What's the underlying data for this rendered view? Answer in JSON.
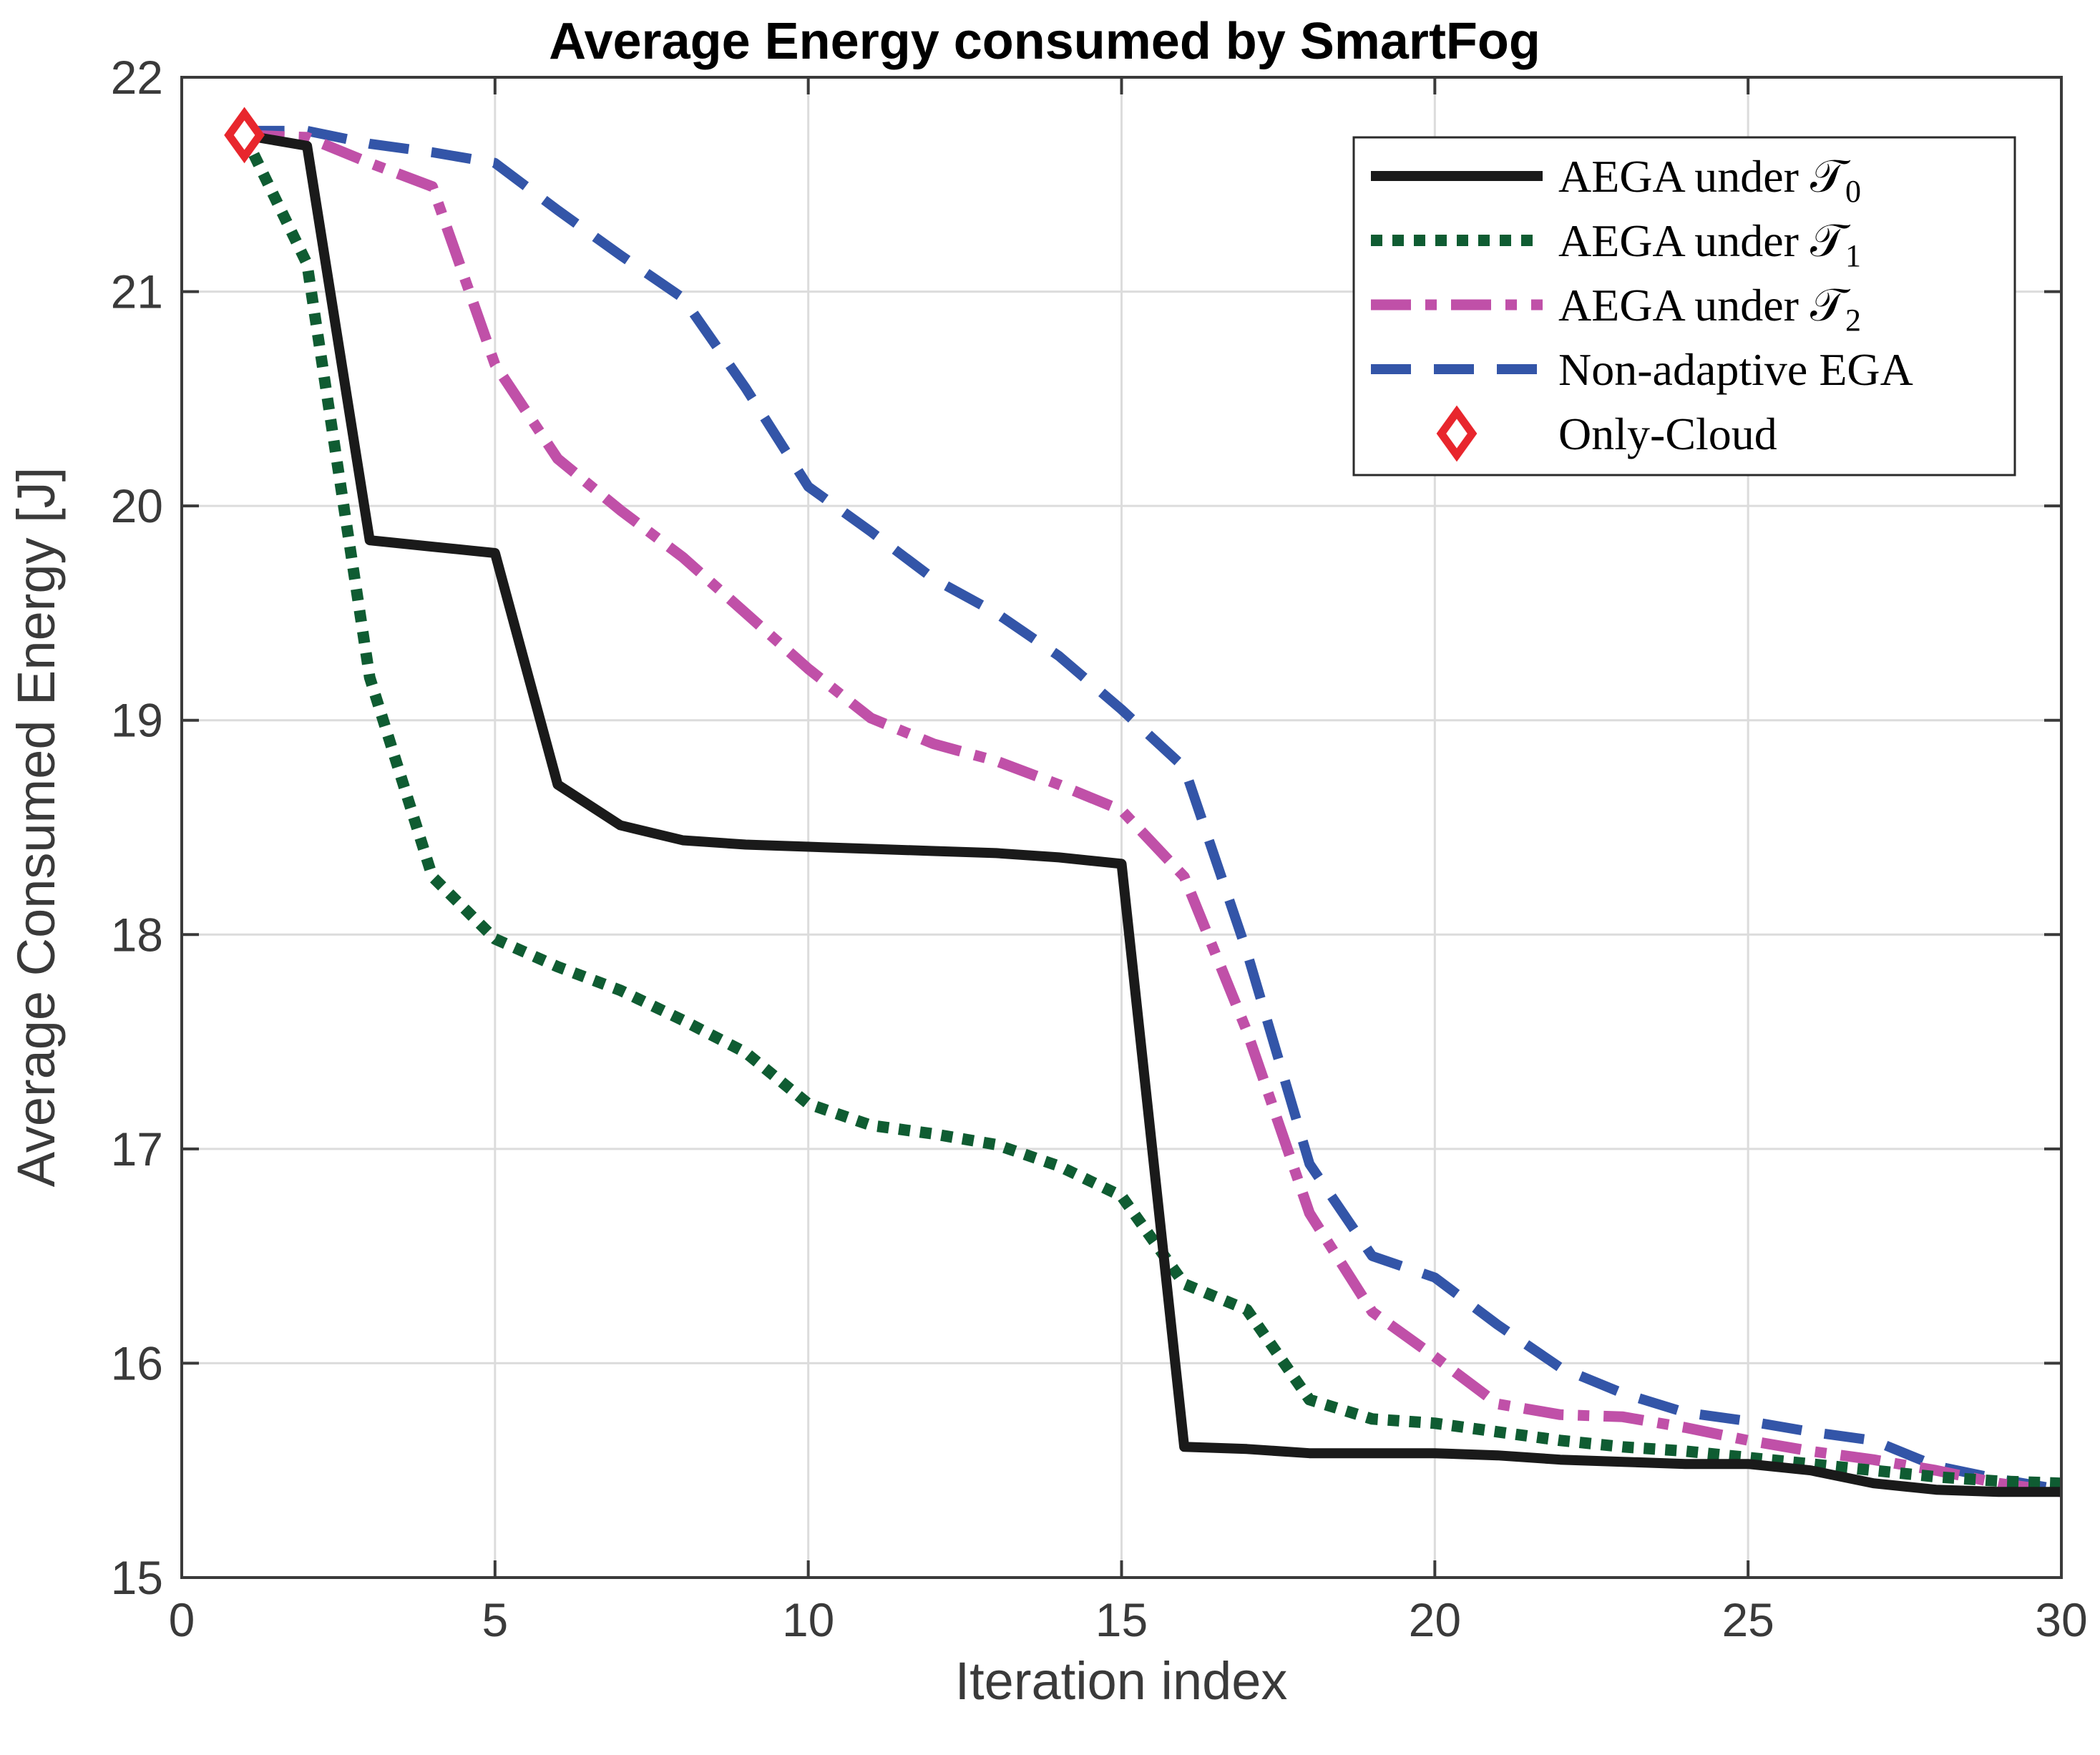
{
  "chart_data": {
    "type": "line",
    "title": "Average Energy consumed by SmartFog",
    "xlabel": "Iteration index",
    "ylabel": "Average Consumed Energy [J]",
    "xlim": [
      0,
      30
    ],
    "ylim": [
      15,
      22
    ],
    "xticks": [
      0,
      5,
      10,
      15,
      20,
      25,
      30
    ],
    "yticks": [
      15,
      16,
      17,
      18,
      19,
      20,
      21,
      22
    ],
    "xtick_labels": [
      "0",
      "5",
      "10",
      "15",
      "20",
      "25",
      "30"
    ],
    "ytick_labels": [
      "15",
      "16",
      "17",
      "18",
      "19",
      "20",
      "21",
      "22"
    ],
    "grid": true,
    "legend_position": "top-right",
    "x": [
      1,
      2,
      3,
      4,
      5,
      6,
      7,
      8,
      9,
      10,
      11,
      12,
      13,
      14,
      15,
      16,
      17,
      18,
      19,
      20,
      21,
      22,
      23,
      24,
      25,
      26,
      27,
      28,
      29,
      30
    ],
    "series": [
      {
        "name": "AEGA under 𝒯",
        "subscript": "0",
        "color": "#1a1a1a",
        "style": "solid",
        "values": [
          21.73,
          21.68,
          19.84,
          19.81,
          19.78,
          18.7,
          18.51,
          18.44,
          18.42,
          18.41,
          18.4,
          18.39,
          18.38,
          18.36,
          18.33,
          15.61,
          15.6,
          15.58,
          15.58,
          15.58,
          15.57,
          15.55,
          15.54,
          15.53,
          15.53,
          15.5,
          15.44,
          15.41,
          15.4,
          15.4
        ]
      },
      {
        "name": "AEGA under 𝒯",
        "subscript": "1",
        "color": "#0f5c32",
        "style": "dotted",
        "values": [
          21.73,
          21.13,
          19.2,
          18.27,
          17.98,
          17.85,
          17.74,
          17.6,
          17.45,
          17.21,
          17.11,
          17.07,
          17.02,
          16.92,
          16.78,
          16.37,
          16.25,
          15.83,
          15.74,
          15.72,
          15.68,
          15.64,
          15.61,
          15.59,
          15.56,
          15.53,
          15.5,
          15.47,
          15.45,
          15.44
        ]
      },
      {
        "name": "AEGA under 𝒯",
        "subscript": "2",
        "color": "#c050a8",
        "style": "dashdot",
        "values": [
          21.73,
          21.72,
          21.6,
          21.49,
          20.66,
          20.22,
          19.98,
          19.76,
          19.5,
          19.24,
          19.01,
          18.89,
          18.81,
          18.7,
          18.58,
          18.27,
          17.55,
          16.7,
          16.24,
          16.03,
          15.81,
          15.76,
          15.75,
          15.7,
          15.64,
          15.59,
          15.55,
          15.5,
          15.44,
          15.4
        ]
      },
      {
        "name": "Non-adaptive EGA",
        "subscript": "",
        "color": "#3355a8",
        "style": "dashed",
        "values": [
          21.75,
          21.75,
          21.69,
          21.65,
          21.6,
          21.38,
          21.17,
          20.97,
          20.55,
          20.09,
          19.88,
          19.66,
          19.5,
          19.3,
          19.05,
          18.78,
          17.92,
          16.93,
          16.5,
          16.4,
          16.18,
          15.98,
          15.86,
          15.77,
          15.73,
          15.68,
          15.64,
          15.52,
          15.46,
          15.41
        ]
      }
    ],
    "markers": [
      {
        "name": "Only-Cloud",
        "x": 1,
        "y": 21.73,
        "color": "#e8262d",
        "shape": "diamond"
      }
    ]
  }
}
